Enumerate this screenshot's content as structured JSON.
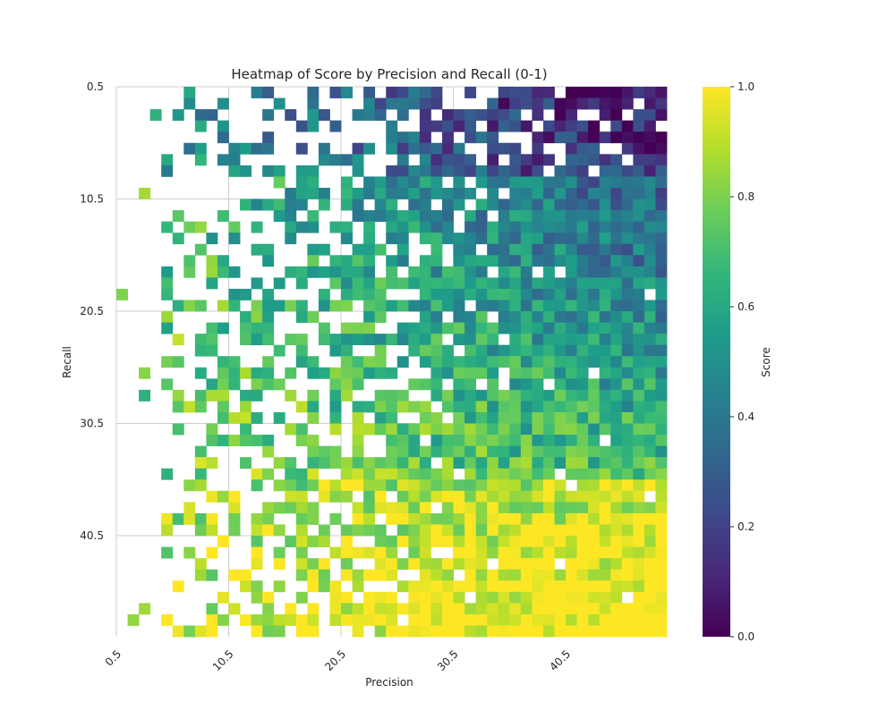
{
  "chart_data": {
    "type": "heatmap",
    "title": "Heatmap of Score by Precision and Recall (0-1)",
    "xlabel": "Precision",
    "ylabel": "Recall",
    "x_ticks": [
      "0.5",
      "10.5",
      "20.5",
      "30.5",
      "40.5"
    ],
    "y_ticks": [
      "0.5",
      "10.5",
      "20.5",
      "30.5",
      "40.5"
    ],
    "x_range": [
      0,
      49
    ],
    "y_range": [
      0,
      49
    ],
    "colorbar": {
      "label": "Score",
      "range": [
        0.0,
        1.0
      ],
      "ticks": [
        "0.0",
        "0.2",
        "0.4",
        "0.6",
        "0.8",
        "1.0"
      ],
      "colormap": "viridis"
    },
    "grid": true,
    "trend": "Score is sparse and mixed (purple/teal) at low recall, greenish in the middle, and highest (yellow, near 1.0) at high precision and high recall in the lower-right region."
  },
  "colors": {
    "viridis_stops": [
      "#440154",
      "#482878",
      "#3e4989",
      "#31688e",
      "#26828e",
      "#1f9e89",
      "#35b779",
      "#6ece58",
      "#b5de2b",
      "#fde725"
    ],
    "grid": "#cccccc",
    "text": "#262626"
  }
}
